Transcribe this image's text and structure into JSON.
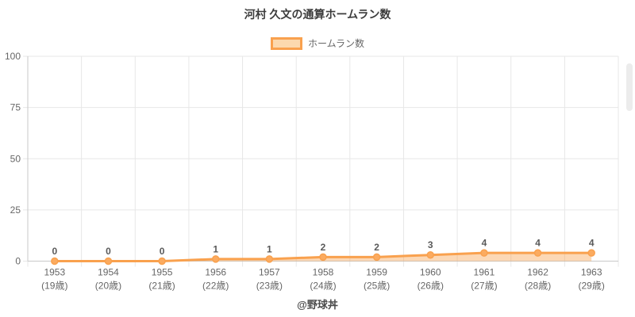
{
  "title": "河村 久文の通算ホームラン数",
  "legend": {
    "label": "ホームラン数"
  },
  "footer": "@野球丼",
  "colors": {
    "line": "#f9a14e",
    "area_fill": "rgba(249,161,78,0.42)",
    "point_fill": "#fbab60",
    "swatch_fill": "#fcd9ae",
    "grid": "#e7e7e7",
    "axis": "#c9c9c9",
    "tick_label": "#666666",
    "value_label": "#595959",
    "title_color": "#3c3c3c"
  },
  "chart_data": {
    "type": "area",
    "title": "河村 久文の通算ホームラン数",
    "series": [
      {
        "name": "ホームラン数",
        "values": [
          0,
          0,
          0,
          1,
          1,
          2,
          2,
          3,
          4,
          4,
          4
        ]
      }
    ],
    "categories": [
      "1953",
      "1954",
      "1955",
      "1956",
      "1957",
      "1958",
      "1959",
      "1960",
      "1961",
      "1962",
      "1963"
    ],
    "category_sublabels": [
      "(19歳)",
      "(20歳)",
      "(21歳)",
      "(22歳)",
      "(23歳)",
      "(24歳)",
      "(25歳)",
      "(26歳)",
      "(27歳)",
      "(28歳)",
      "(29歳)"
    ],
    "data_labels": [
      0,
      0,
      0,
      1,
      1,
      2,
      2,
      3,
      4,
      4,
      4
    ],
    "xlabel": "",
    "ylabel": "",
    "ylim": [
      0,
      100
    ],
    "yticks": [
      0,
      25,
      50,
      75,
      100
    ],
    "grid": true,
    "legend_position": "top"
  }
}
